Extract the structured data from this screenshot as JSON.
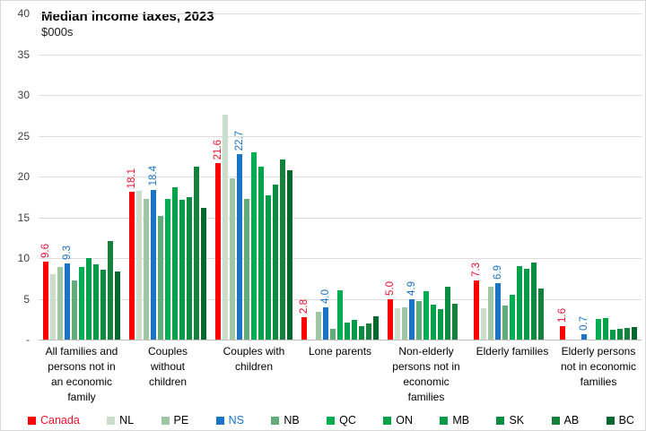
{
  "chart_data": {
    "type": "bar",
    "title": "Median income taxes, 2023",
    "subtitle": "$000s",
    "unit": "$000s",
    "legend_position": "bottom",
    "grid": true,
    "y_axis": {
      "min": 0,
      "max": 40,
      "step": 5,
      "ticks": [
        {
          "v": 40,
          "label": "40"
        },
        {
          "v": 35,
          "label": "35"
        },
        {
          "v": 30,
          "label": "30"
        },
        {
          "v": 25,
          "label": "25"
        },
        {
          "v": 20,
          "label": "20"
        },
        {
          "v": 15,
          "label": "15"
        },
        {
          "v": 10,
          "label": "10"
        },
        {
          "v": 5,
          "label": "5"
        },
        {
          "v": 0,
          "label": "-"
        }
      ]
    },
    "categories": [
      "All families and\npersons not in\nan economic\nfamily",
      "Couples\nwithout\nchildren",
      "Couples with\nchildren",
      "Lone parents",
      "Non-elderly\npersons not in\neconomic\nfamilies",
      "Elderly families",
      "Elderly persons\nnot in economic\nfamilies"
    ],
    "series": [
      {
        "name": "Canada",
        "color": "#FF0000",
        "text_color": "#E8112D",
        "data_labels": true,
        "values": [
          9.6,
          18.1,
          21.6,
          2.8,
          5.0,
          7.3,
          1.6
        ]
      },
      {
        "name": "NL",
        "color": "#CBDECB",
        "text_color": "#000000",
        "data_labels": false,
        "values": [
          8.0,
          18.2,
          27.6,
          null,
          3.8,
          3.9,
          null
        ]
      },
      {
        "name": "PE",
        "color": "#9CC7A2",
        "text_color": "#000000",
        "data_labels": false,
        "values": [
          8.9,
          17.2,
          19.8,
          3.4,
          4.0,
          6.5,
          null
        ]
      },
      {
        "name": "NS",
        "color": "#1B74C5",
        "text_color": "#1B74C5",
        "data_labels": true,
        "values": [
          9.3,
          18.4,
          22.7,
          4.0,
          4.9,
          6.9,
          0.7
        ]
      },
      {
        "name": "NB",
        "color": "#63AB7B",
        "text_color": "#000000",
        "data_labels": false,
        "values": [
          7.2,
          15.2,
          17.2,
          1.3,
          4.7,
          4.2,
          null
        ]
      },
      {
        "name": "QC",
        "color": "#00AD4F",
        "text_color": "#000000",
        "data_labels": false,
        "values": [
          8.9,
          17.2,
          23.0,
          6.0,
          5.9,
          5.5,
          2.5
        ]
      },
      {
        "name": "ON",
        "color": "#00A348",
        "text_color": "#000000",
        "data_labels": false,
        "values": [
          10.0,
          18.7,
          21.2,
          2.1,
          4.3,
          9.0,
          2.6
        ]
      },
      {
        "name": "MB",
        "color": "#079A47",
        "text_color": "#000000",
        "data_labels": false,
        "values": [
          9.2,
          17.1,
          17.7,
          2.4,
          3.7,
          8.7,
          1.2
        ]
      },
      {
        "name": "SK",
        "color": "#0A8C41",
        "text_color": "#000000",
        "data_labels": false,
        "values": [
          8.6,
          17.5,
          19.0,
          1.6,
          6.5,
          9.4,
          1.3
        ]
      },
      {
        "name": "AB",
        "color": "#15813C",
        "text_color": "#000000",
        "data_labels": false,
        "values": [
          12.1,
          21.2,
          22.1,
          2.0,
          4.4,
          6.3,
          1.4
        ]
      },
      {
        "name": "BC",
        "color": "#07672E",
        "text_color": "#000000",
        "data_labels": false,
        "values": [
          8.4,
          16.2,
          20.8,
          2.9,
          null,
          null,
          1.5
        ]
      }
    ]
  }
}
